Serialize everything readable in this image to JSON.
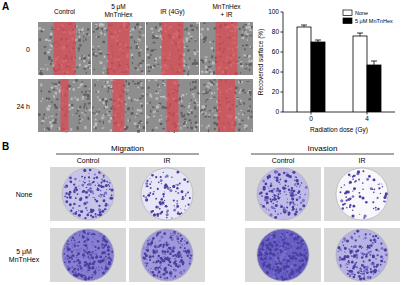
{
  "figure": {
    "panel_a": {
      "label": "A",
      "columns": [
        [
          "Control"
        ],
        [
          "5 μM",
          "MnTnHex"
        ],
        [
          "IR (4Gy)"
        ],
        [
          "MnTnHex",
          "+ IR"
        ]
      ],
      "rows": [
        "0",
        "24 h"
      ]
    },
    "panel_b": {
      "label": "B",
      "groups": [
        "Migration",
        "Invasion"
      ],
      "columns": [
        "Control",
        "IR"
      ],
      "rows": [
        [
          "None"
        ],
        [
          "5 μM",
          "MnTnHex"
        ]
      ]
    }
  },
  "chart_data": {
    "type": "bar",
    "categories": [
      "0",
      "4"
    ],
    "x_label": "Radiation dose (Gy)",
    "y_label": "Recovered surface (%)",
    "ylim": [
      0,
      100
    ],
    "yticks": [
      0,
      20,
      40,
      60,
      80,
      100
    ],
    "grid": false,
    "legend": "upper right",
    "series": [
      {
        "name": "None",
        "color": "#ffffff",
        "values": [
          85,
          76
        ],
        "errors": [
          2,
          3
        ]
      },
      {
        "name": "5 μM MnTnHex",
        "color": "#000000",
        "values": [
          70,
          47
        ],
        "errors": [
          2,
          4
        ]
      }
    ]
  }
}
